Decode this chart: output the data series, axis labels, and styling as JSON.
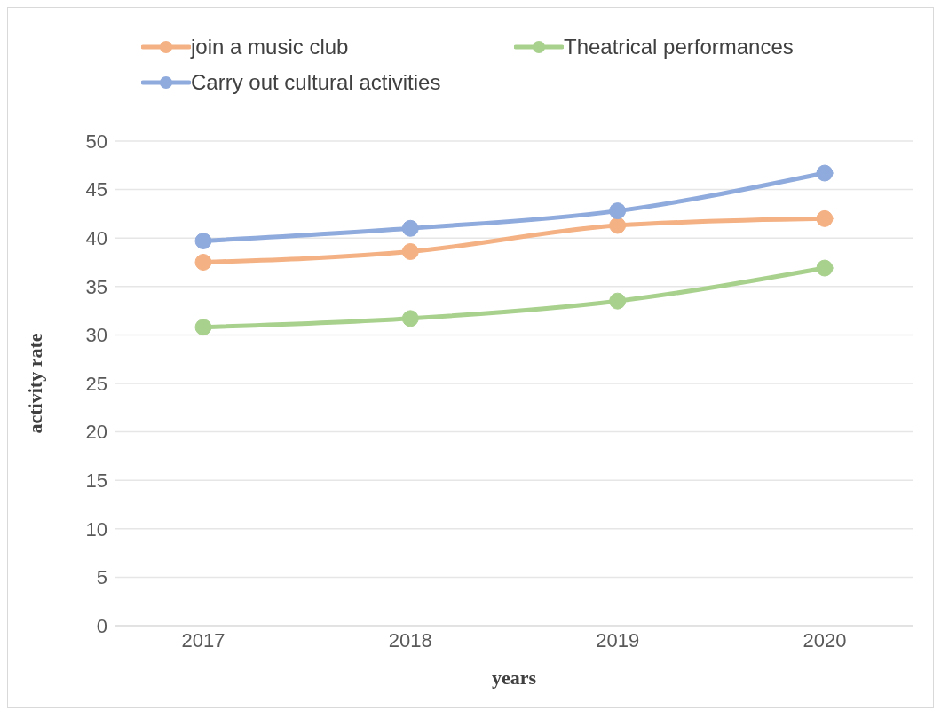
{
  "chart_data": {
    "type": "line",
    "xlabel": "years",
    "ylabel": "activity rate",
    "categories": [
      "2017",
      "2018",
      "2019",
      "2020"
    ],
    "series": [
      {
        "name": "join a music club",
        "color": "#f4b183",
        "values": [
          37.5,
          38.6,
          41.3,
          42.0
        ]
      },
      {
        "name": "Theatrical performances",
        "color": "#a9d18e",
        "values": [
          30.8,
          31.7,
          33.5,
          36.9
        ]
      },
      {
        "name": "Carry out cultural activities",
        "color": "#8faadc",
        "values": [
          39.7,
          41.0,
          42.8,
          46.7
        ]
      }
    ],
    "ylim": [
      0,
      50
    ],
    "yticks": [
      0,
      5,
      10,
      15,
      20,
      25,
      30,
      35,
      40,
      45,
      50
    ],
    "grid": "y",
    "legend": "top",
    "marker": "circle",
    "line_style": "solid"
  }
}
